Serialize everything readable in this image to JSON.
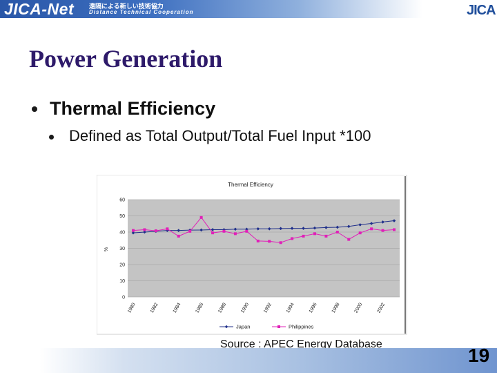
{
  "banner": {
    "logo": "JICA-Net",
    "subtitle_jp": "遠隔による新しい技術協力",
    "subtitle_en": "Distance Technical Cooperation",
    "color": "#2a57a8"
  },
  "corner_logo": "JICA",
  "title": "Power Generation",
  "bullets": [
    {
      "text": "Thermal Efficiency"
    },
    {
      "text": "Defined as Total Output/Total Fuel Input *100"
    }
  ],
  "chart_data": {
    "type": "line",
    "title": "Thermal Efficiency",
    "ylabel": "%",
    "xlabel": "",
    "ylim": [
      0,
      60
    ],
    "yticks": [
      0,
      10,
      20,
      30,
      40,
      50,
      60
    ],
    "grid": true,
    "legend_position": "bottom",
    "x": [
      1980,
      1981,
      1982,
      1983,
      1984,
      1985,
      1986,
      1987,
      1988,
      1989,
      1990,
      1991,
      1992,
      1993,
      1994,
      1995,
      1996,
      1997,
      1998,
      1999,
      2000,
      2001,
      2002,
      2003
    ],
    "xticks": [
      "1980",
      "1982",
      "1984",
      "1986",
      "1988",
      "1990",
      "1992",
      "1994",
      "1996",
      "1998",
      "2000",
      "2002"
    ],
    "series": [
      {
        "name": "Japan",
        "color": "#1f2f8a",
        "marker": "diamond",
        "values": [
          39.5,
          40,
          40.5,
          41,
          41,
          41.2,
          41.3,
          41.5,
          41.5,
          41.8,
          41.8,
          42,
          42,
          42.2,
          42.3,
          42.3,
          42.5,
          42.8,
          43,
          43.5,
          44.5,
          45.3,
          46.2,
          47
        ]
      },
      {
        "name": "Philippines",
        "color": "#e020b8",
        "marker": "square",
        "values": [
          41,
          41.5,
          40.8,
          42,
          37.5,
          40.5,
          49,
          39.5,
          40.5,
          39,
          40.5,
          34.5,
          34.3,
          33.5,
          36,
          37.5,
          39,
          37.5,
          40,
          35.5,
          39.5,
          42,
          41,
          41.5
        ]
      }
    ]
  },
  "source": "Source : APEC Energy Database",
  "page_number": "19"
}
